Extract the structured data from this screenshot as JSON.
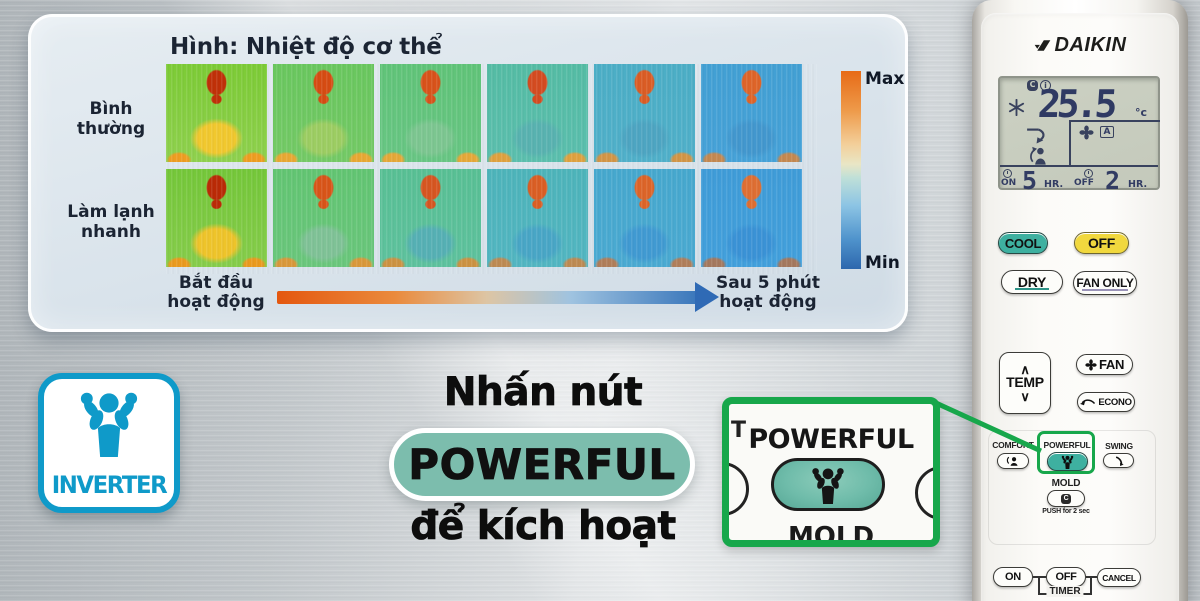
{
  "panel": {
    "title": "Hình:  Nhiệt độ cơ thể",
    "colorbar_max": "Max",
    "colorbar_min": "Min",
    "timeline_start_line1": "Bắt đầu",
    "timeline_start_line2": "hoạt động",
    "timeline_end_line1": "Sau 5 phút",
    "timeline_end_line2": "hoạt động"
  },
  "thermal": {
    "rows": [
      {
        "label_line1": "Bình",
        "label_line2": "thường",
        "cells": [
          {
            "bg1": "#7ccb35",
            "bg2": "#8fd14e",
            "body": "#f1c82e",
            "head": "#c03008",
            "arm": "#ee9d20"
          },
          {
            "bg1": "#69c75e",
            "bg2": "#74ca66",
            "body": "#9ccd62",
            "head": "#d64b12",
            "arm": "#e8a832"
          },
          {
            "bg1": "#60c478",
            "bg2": "#68c684",
            "body": "#7cc690",
            "head": "#d8521a",
            "arm": "#e5a838"
          },
          {
            "bg1": "#54bca4",
            "bg2": "#5bbfae",
            "body": "#58b2b0",
            "head": "#d44b20",
            "arm": "#dfa13e"
          },
          {
            "bg1": "#4baec6",
            "bg2": "#50b0ca",
            "body": "#4da5c2",
            "head": "#da5c24",
            "arm": "#d29546"
          },
          {
            "bg1": "#42a0d4",
            "bg2": "#46a2d8",
            "body": "#4297ce",
            "head": "#de6428",
            "arm": "#c48850"
          }
        ]
      },
      {
        "label_line1": "Làm lạnh",
        "label_line2": "nhanh",
        "cells": [
          {
            "bg1": "#74c739",
            "bg2": "#86cd4b",
            "body": "#eec42a",
            "head": "#ba2a06",
            "arm": "#ea9a1e"
          },
          {
            "bg1": "#62c572",
            "bg2": "#6ac77c",
            "body": "#7fc296",
            "head": "#d85418",
            "arm": "#d9983a"
          },
          {
            "bg1": "#58c094",
            "bg2": "#5ec29e",
            "body": "#55b0b4",
            "head": "#d65520",
            "arm": "#cc9242"
          },
          {
            "bg1": "#4db4ba",
            "bg2": "#52b6c2",
            "body": "#48a6c6",
            "head": "#da5e24",
            "arm": "#bd8a52"
          },
          {
            "bg1": "#46a8ce",
            "bg2": "#4aaad2",
            "body": "#409ad2",
            "head": "#dc6428",
            "arm": "#b07e5a"
          },
          {
            "bg1": "#3f9cd8",
            "bg2": "#42a0dc",
            "body": "#3a92d6",
            "head": "#de6e32",
            "arm": "#a4785e"
          }
        ]
      }
    ]
  },
  "badge": {
    "label": "INVERTER",
    "color": "#0f9ac9"
  },
  "cta": {
    "line1": "Nhấn nút",
    "button": "POWERFUL",
    "line2": "để kích hoạt",
    "pill_color": "#7cbdad"
  },
  "callout": {
    "label": "POWERFUL",
    "partial_bottom": "MOLD",
    "partial_left": "T",
    "border_color": "#17a74b"
  },
  "remote": {
    "brand": "DAIKIN",
    "display": {
      "temperature": "25.5",
      "unit": "°c",
      "fan_mode": "A",
      "eco_icon_1": "C",
      "eco_icon_2": "i",
      "timer_on_label": "ON",
      "timer_on_value": "5",
      "timer_on_unit": "HR.",
      "timer_off_label": "OFF",
      "timer_off_value": "2",
      "timer_off_unit": "HR."
    },
    "buttons": {
      "cool": "COOL",
      "off_mode": "OFF",
      "dry": "DRY",
      "fan_only": "FAN ONLY",
      "temp": "TEMP",
      "temp_up": "∧",
      "temp_down": "∨",
      "fan": "FAN",
      "econo": "ECONO",
      "comfort": "COMFORT",
      "powerful": "POWERFUL",
      "swing": "SWING",
      "mold": "MOLD",
      "mold_icon": "C",
      "mold_hint": "PUSH for 2 sec",
      "timer_on": "ON",
      "timer_off": "OFF",
      "cancel": "CANCEL",
      "timer_group": "TIMER"
    },
    "accent_teal": "#3eb0a0",
    "accent_yellow": "#f1d83e"
  },
  "highlight_green": "#17a74b"
}
